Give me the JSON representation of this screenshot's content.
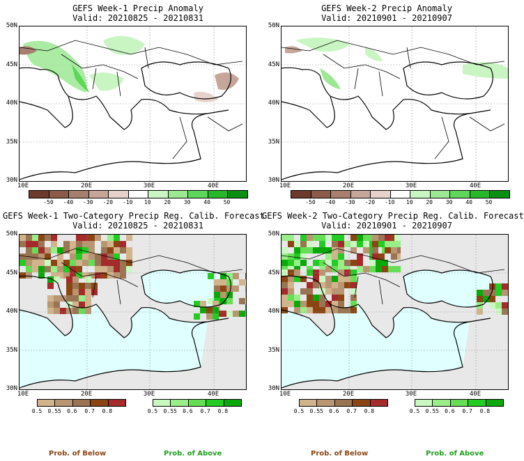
{
  "panels": [
    {
      "title": "GEFS Week-1 Precip Anomaly",
      "valid": "Valid: 20210825 - 20210831"
    },
    {
      "title": "GEFS Week-2 Precip Anomaly",
      "valid": "Valid: 20210901 - 20210907"
    },
    {
      "title": "GEFS Week-1 Two-Category Precip Reg. Calib. Forecast",
      "valid": "Valid: 20210825 - 20210831"
    },
    {
      "title": "GEFS Week-2 Two-Category Precip Reg. Calib. Forecast",
      "valid": "Valid: 20210901 - 20210907"
    }
  ],
  "lat_labels": [
    "50N",
    "45N",
    "40N",
    "35N",
    "30N"
  ],
  "lon_labels": [
    "10E",
    "20E",
    "30E",
    "40E"
  ],
  "anomaly_colorbar": {
    "labels": [
      "-50",
      "-40",
      "-30",
      "-20",
      "-10",
      "10",
      "20",
      "30",
      "40",
      "50"
    ],
    "colors": [
      "#6b3a2a",
      "#8b5a48",
      "#a77f6f",
      "#c7a69a",
      "#e6d2cb",
      "#ffffff",
      "#c9f5c3",
      "#9ce893",
      "#5ed65a",
      "#27b72a",
      "#0a8f12"
    ]
  },
  "prob_colorbar_below": {
    "labels": [
      "0.5",
      "0.55",
      "0.6",
      "0.7",
      "0.8"
    ],
    "colors": [
      "#d2b48c",
      "#b99672",
      "#9a7553",
      "#8b4513",
      "#a52a2a"
    ]
  },
  "prob_colorbar_above": {
    "labels": [
      "0.5",
      "0.55",
      "0.6",
      "0.7",
      "0.8"
    ],
    "colors": [
      "#c9f8c0",
      "#99ee8a",
      "#66dd55",
      "#22cc22",
      "#0aa80a"
    ]
  },
  "prob_legend": {
    "below": "Prob. of Below",
    "above": "Prob. of Above"
  },
  "colors": {
    "sea": "#e0ffff",
    "land_nodata": "#e8e8e8",
    "coast": "#000000",
    "grid": "#999999"
  }
}
